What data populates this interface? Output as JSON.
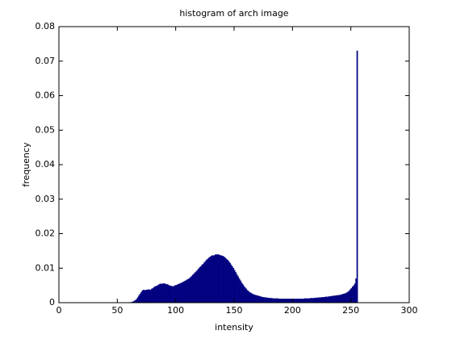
{
  "chart_data": {
    "type": "histogram",
    "title": "histogram of arch image",
    "x_label": "intensity",
    "y_label": "frequency",
    "color": "#000080",
    "xlim": [
      0,
      300
    ],
    "xticks": [
      0,
      50,
      100,
      150,
      200,
      250,
      300
    ],
    "ylim": [
      0,
      0.08
    ],
    "yticks": [
      0,
      0.01,
      0.02,
      0.03,
      0.04,
      0.05,
      0.06,
      0.07,
      0.08
    ],
    "bins": [
      60,
      61,
      62,
      63,
      64,
      65,
      66,
      67,
      68,
      69,
      70,
      71,
      72,
      73,
      74,
      75,
      76,
      77,
      78,
      79,
      80,
      81,
      82,
      83,
      84,
      85,
      86,
      87,
      88,
      89,
      90,
      91,
      92,
      93,
      94,
      95,
      96,
      97,
      98,
      99,
      100,
      101,
      102,
      103,
      104,
      105,
      106,
      107,
      108,
      109,
      110,
      111,
      112,
      113,
      114,
      115,
      116,
      117,
      118,
      119,
      120,
      121,
      122,
      123,
      124,
      125,
      126,
      127,
      128,
      129,
      130,
      131,
      132,
      133,
      134,
      135,
      136,
      137,
      138,
      139,
      140,
      141,
      142,
      143,
      144,
      145,
      146,
      147,
      148,
      149,
      150,
      151,
      152,
      153,
      154,
      155,
      156,
      157,
      158,
      159,
      160,
      161,
      162,
      163,
      164,
      165,
      166,
      167,
      168,
      169,
      170,
      171,
      172,
      173,
      174,
      175,
      176,
      177,
      178,
      179,
      180,
      181,
      182,
      183,
      184,
      185,
      186,
      187,
      188,
      189,
      190,
      191,
      192,
      193,
      194,
      195,
      196,
      197,
      198,
      199,
      200,
      201,
      202,
      203,
      204,
      205,
      206,
      207,
      208,
      209,
      210,
      211,
      212,
      213,
      214,
      215,
      216,
      217,
      218,
      219,
      220,
      221,
      222,
      223,
      224,
      225,
      226,
      227,
      228,
      229,
      230,
      231,
      232,
      233,
      234,
      235,
      236,
      237,
      238,
      239,
      240,
      241,
      242,
      243,
      244,
      245,
      246,
      247,
      248,
      249,
      250,
      251,
      252,
      253,
      254,
      255,
      256
    ],
    "values": [
      0.0001,
      0.0001,
      0.0002,
      0.0003,
      0.0005,
      0.0007,
      0.001,
      0.0015,
      0.002,
      0.0025,
      0.003,
      0.0035,
      0.0037,
      0.0036,
      0.0037,
      0.0037,
      0.0038,
      0.0038,
      0.0037,
      0.004,
      0.0042,
      0.0045,
      0.0047,
      0.0048,
      0.005,
      0.0052,
      0.0054,
      0.0055,
      0.0054,
      0.0056,
      0.0055,
      0.0054,
      0.0053,
      0.0052,
      0.005,
      0.0049,
      0.0048,
      0.0047,
      0.0048,
      0.005,
      0.0051,
      0.0052,
      0.0054,
      0.0055,
      0.0057,
      0.0058,
      0.006,
      0.0062,
      0.0064,
      0.0066,
      0.0068,
      0.007,
      0.0073,
      0.0076,
      0.008,
      0.0083,
      0.0087,
      0.009,
      0.0094,
      0.0098,
      0.0102,
      0.0105,
      0.0109,
      0.0112,
      0.0116,
      0.012,
      0.0124,
      0.0127,
      0.013,
      0.0133,
      0.0135,
      0.0137,
      0.0136,
      0.0138,
      0.014,
      0.0139,
      0.014,
      0.0138,
      0.0137,
      0.0136,
      0.0135,
      0.0133,
      0.013,
      0.0127,
      0.0124,
      0.012,
      0.0115,
      0.011,
      0.0105,
      0.01,
      0.0094,
      0.0088,
      0.0082,
      0.0076,
      0.007,
      0.0064,
      0.0058,
      0.0053,
      0.0048,
      0.0044,
      0.004,
      0.0036,
      0.0033,
      0.003,
      0.0028,
      0.0026,
      0.0024,
      0.0023,
      0.0022,
      0.0021,
      0.002,
      0.0019,
      0.0018,
      0.0017,
      0.0016,
      0.0016,
      0.0015,
      0.0015,
      0.0014,
      0.0014,
      0.0013,
      0.0013,
      0.0013,
      0.0012,
      0.0012,
      0.0012,
      0.0012,
      0.0012,
      0.0011,
      0.0011,
      0.0011,
      0.0011,
      0.0011,
      0.0011,
      0.0011,
      0.0011,
      0.0011,
      0.0011,
      0.0011,
      0.0011,
      0.0011,
      0.0011,
      0.0011,
      0.0011,
      0.0011,
      0.0011,
      0.0011,
      0.0011,
      0.0011,
      0.0011,
      0.0012,
      0.0012,
      0.0012,
      0.0012,
      0.0012,
      0.0013,
      0.0013,
      0.0013,
      0.0013,
      0.0014,
      0.0014,
      0.0014,
      0.0015,
      0.0015,
      0.0015,
      0.0016,
      0.0016,
      0.0016,
      0.0017,
      0.0017,
      0.0017,
      0.0018,
      0.0018,
      0.0019,
      0.0019,
      0.002,
      0.002,
      0.0021,
      0.0021,
      0.0022,
      0.0022,
      0.0023,
      0.0024,
      0.0025,
      0.0026,
      0.0027,
      0.0029,
      0.0031,
      0.0034,
      0.0038,
      0.0042,
      0.0046,
      0.005,
      0.0055,
      0.007,
      0.073
    ]
  }
}
